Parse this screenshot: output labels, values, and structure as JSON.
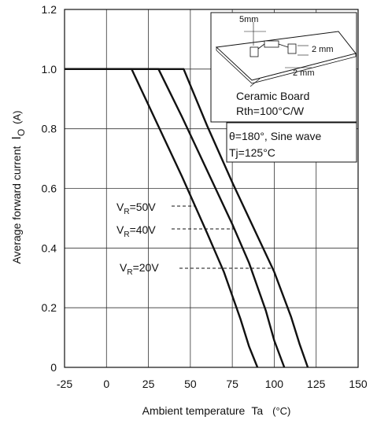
{
  "chart_data": {
    "type": "line",
    "xlabel_main": "Ambient temperature",
    "xlabel_sym": "Ta",
    "xlabel_unit": "(°C)",
    "ylabel_main": "Average forward current",
    "ylabel_sym": "I",
    "ylabel_sub": "O",
    "ylabel_unit": "(A)",
    "xlim": [
      -25,
      150
    ],
    "ylim": [
      0,
      1.2
    ],
    "xticks": [
      -25,
      0,
      25,
      50,
      75,
      100,
      125,
      150
    ],
    "yticks": [
      0,
      0.2,
      0.4,
      0.6,
      0.8,
      1.0,
      1.2
    ],
    "xtick_labels": [
      "-25",
      "0",
      "25",
      "50",
      "75",
      "100",
      "125",
      "150"
    ],
    "ytick_labels": [
      "0",
      "0.2",
      "0.4",
      "0.6",
      "0.8",
      "1.0",
      "1.2"
    ],
    "grid": true,
    "series": [
      {
        "name_pre": "V",
        "name_sub": "R",
        "name_post": "=50V",
        "x": [
          -25,
          15,
          30,
          45,
          60,
          70,
          80,
          85,
          90
        ],
        "y": [
          1.0,
          1.0,
          0.82,
          0.64,
          0.45,
          0.32,
          0.16,
          0.07,
          0.0
        ]
      },
      {
        "name_pre": "V",
        "name_sub": "R",
        "name_post": "=40V",
        "x": [
          -25,
          31,
          45,
          60,
          75,
          85,
          95,
          100,
          106
        ],
        "y": [
          1.0,
          1.0,
          0.84,
          0.66,
          0.48,
          0.35,
          0.19,
          0.09,
          0.0
        ]
      },
      {
        "name_pre": "V",
        "name_sub": "R",
        "name_post": "=20V",
        "x": [
          -25,
          46,
          60,
          75,
          90,
          100,
          110,
          115,
          120
        ],
        "y": [
          1.0,
          1.0,
          0.81,
          0.62,
          0.44,
          0.32,
          0.17,
          0.08,
          0.0
        ]
      }
    ],
    "annotations": {
      "condition_line1": "θ=180°, Sine wave",
      "condition_line2": "Tj=125°C",
      "board_line1": "Ceramic Board",
      "board_line2": "Rth=100°C/W",
      "dim_5mm": "5mm",
      "dim_2mm_a": "2 mm",
      "dim_2mm_b": "2 mm"
    }
  }
}
